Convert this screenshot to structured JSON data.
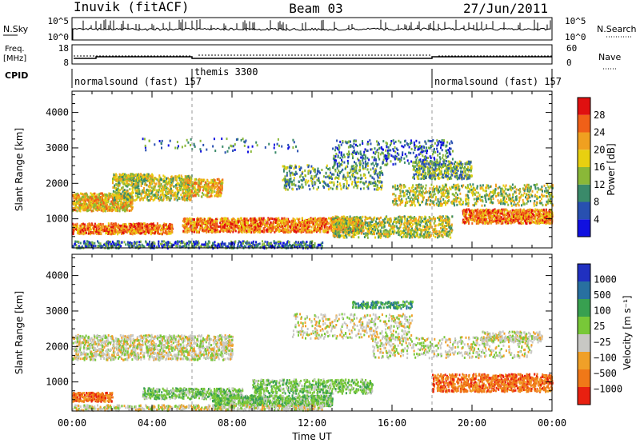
{
  "header": {
    "station": "Inuvik (fitACF)",
    "beam": "Beam 03",
    "date": "27/Jun/2011"
  },
  "top_panels": {
    "nsky_label": "N.Sky",
    "nsky_ticks": [
      "10^5",
      "10^0"
    ],
    "freq_label_1": "Freq.",
    "freq_label_2": "[MHz]",
    "freq_ticks": [
      "18",
      "8"
    ],
    "nsearch_label": "N.Search",
    "nsearch_ticks": [
      "10^5",
      "10^0"
    ],
    "nave_label": "Nave",
    "nave_ticks": [
      "60",
      "0"
    ],
    "cpid_label": "CPID",
    "cpid_segments": [
      {
        "label": "normalsound (fast) 157",
        "start_h": 0,
        "end_h": 6
      },
      {
        "label": "themis 3300",
        "start_h": 6,
        "end_h": 18
      },
      {
        "label": "normalsound (fast) 157",
        "start_h": 18,
        "end_h": 24
      }
    ]
  },
  "chart_data": [
    {
      "type": "heatmap",
      "name": "power",
      "ylabel": "Slant Range [km]",
      "yticks": [
        "1000",
        "2000",
        "3000",
        "4000"
      ],
      "ylim": [
        180,
        4600
      ],
      "colorbar_label": "Power [dB]",
      "colorbar_ticks": [
        "4",
        "8",
        "12",
        "16",
        "20",
        "24",
        "28"
      ],
      "colors": [
        "#1010e0",
        "#2850b0",
        "#3a8a6a",
        "#8ab838",
        "#e8d010",
        "#f0a020",
        "#f06018",
        "#e01010"
      ]
    },
    {
      "type": "heatmap",
      "name": "velocity",
      "ylabel": "Slant Range [km]",
      "yticks": [
        "1000",
        "2000",
        "3000",
        "4000"
      ],
      "ylim": [
        180,
        4600
      ],
      "colorbar_label": "Velocity [m s⁻¹]",
      "colorbar_ticks": [
        "1000",
        "500",
        "100",
        "25",
        "−25",
        "−100",
        "−500",
        "−1000"
      ],
      "colors": [
        "#2030c0",
        "#2870a0",
        "#38a050",
        "#78c838",
        "#c8c8c4",
        "#f0a028",
        "#f07818",
        "#e82010"
      ],
      "xlabel": "Time UT",
      "xticks": [
        "00:00",
        "04:00",
        "08:00",
        "12:00",
        "16:00",
        "20:00",
        "00:00"
      ]
    }
  ]
}
